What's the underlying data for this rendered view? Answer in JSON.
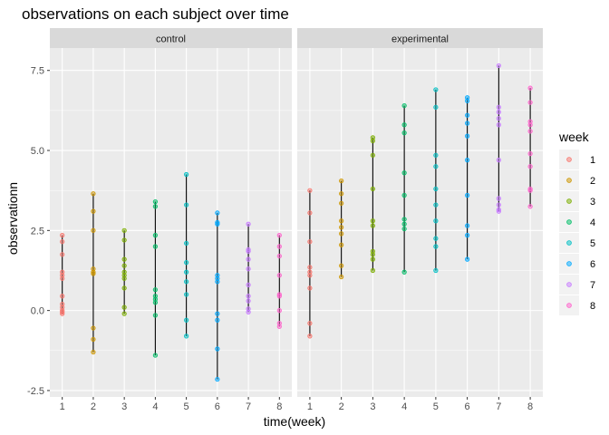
{
  "chart_data": {
    "type": "scatter",
    "title": "observations on each subject over time",
    "xlabel": "time(week)",
    "ylabel": "observationn",
    "x_ticks": [
      1,
      2,
      3,
      4,
      5,
      6,
      7,
      8
    ],
    "y_ticks": [
      "-2.5",
      "0.0",
      "2.5",
      "5.0",
      "7.5"
    ],
    "ylim": [
      -2.7,
      8.2
    ],
    "xlim": [
      0.6,
      8.4
    ],
    "grid": true,
    "legend": {
      "title": "week",
      "position": "right",
      "entries": [
        "1",
        "2",
        "3",
        "4",
        "5",
        "6",
        "7",
        "8"
      ]
    },
    "colors": {
      "1": "#F8766D",
      "2": "#CD9600",
      "3": "#7CAE00",
      "4": "#00BE67",
      "5": "#00BFC4",
      "6": "#00A9FF",
      "7": "#C77CFF",
      "8": "#FF61CC"
    },
    "panels": [
      {
        "label": "control",
        "series": [
          {
            "name": "1",
            "x": 1,
            "values": [
              2.35,
              2.15,
              1.75,
              1.2,
              1.1,
              1.0,
              0.45,
              0.2,
              0.1,
              0.0,
              -0.05,
              -0.1
            ]
          },
          {
            "name": "2",
            "x": 2,
            "values": [
              3.65,
              3.1,
              2.5,
              1.3,
              1.2,
              1.15,
              -0.55,
              -0.9,
              -1.3
            ]
          },
          {
            "name": "3",
            "x": 3,
            "values": [
              2.5,
              2.2,
              1.6,
              1.4,
              1.2,
              1.1,
              1.0,
              0.7,
              0.1,
              -0.1
            ]
          },
          {
            "name": "4",
            "x": 4,
            "values": [
              3.4,
              3.25,
              2.35,
              2.0,
              0.65,
              0.45,
              0.35,
              0.25,
              -0.15,
              -1.4
            ]
          },
          {
            "name": "5",
            "x": 5,
            "values": [
              4.25,
              3.3,
              2.1,
              1.5,
              1.2,
              0.9,
              0.5,
              -0.3,
              -0.8
            ]
          },
          {
            "name": "6",
            "x": 6,
            "values": [
              3.05,
              2.75,
              2.7,
              1.1,
              1.0,
              0.9,
              -0.1,
              -0.3,
              -1.2,
              -2.15
            ]
          },
          {
            "name": "7",
            "x": 7,
            "values": [
              2.7,
              1.9,
              1.85,
              1.6,
              1.3,
              0.8,
              0.45,
              0.3,
              0.05,
              -0.05
            ]
          },
          {
            "name": "8",
            "x": 8,
            "values": [
              2.35,
              2.0,
              1.7,
              1.1,
              0.5,
              0.45,
              0.0,
              -0.4,
              -0.5
            ]
          }
        ]
      },
      {
        "label": "experimental",
        "series": [
          {
            "name": "1",
            "x": 1,
            "values": [
              3.75,
              3.05,
              2.15,
              1.35,
              1.2,
              1.1,
              0.7,
              -0.4,
              -0.8
            ]
          },
          {
            "name": "2",
            "x": 2,
            "values": [
              4.05,
              3.65,
              3.35,
              2.8,
              2.6,
              2.4,
              2.05,
              1.4,
              1.05
            ]
          },
          {
            "name": "3",
            "x": 3,
            "values": [
              5.4,
              5.3,
              4.85,
              3.8,
              2.8,
              2.65,
              1.85,
              1.75,
              1.6,
              1.25
            ]
          },
          {
            "name": "4",
            "x": 4,
            "values": [
              6.4,
              5.8,
              5.55,
              4.3,
              3.6,
              2.85,
              2.7,
              2.55,
              1.2
            ]
          },
          {
            "name": "5",
            "x": 5,
            "values": [
              6.9,
              6.35,
              4.85,
              4.5,
              3.8,
              3.3,
              2.8,
              2.25,
              2.0,
              1.25
            ]
          },
          {
            "name": "6",
            "x": 6,
            "values": [
              6.65,
              6.55,
              6.1,
              5.85,
              5.45,
              4.7,
              3.6,
              2.65,
              2.35,
              1.6
            ]
          },
          {
            "name": "7",
            "x": 7,
            "values": [
              7.65,
              6.35,
              6.2,
              6.0,
              5.8,
              4.7,
              3.5,
              3.3,
              3.15,
              3.1
            ]
          },
          {
            "name": "8",
            "x": 8,
            "values": [
              6.95,
              6.5,
              5.9,
              5.8,
              5.6,
              4.9,
              4.5,
              3.8,
              3.75,
              3.25
            ]
          }
        ]
      }
    ]
  }
}
